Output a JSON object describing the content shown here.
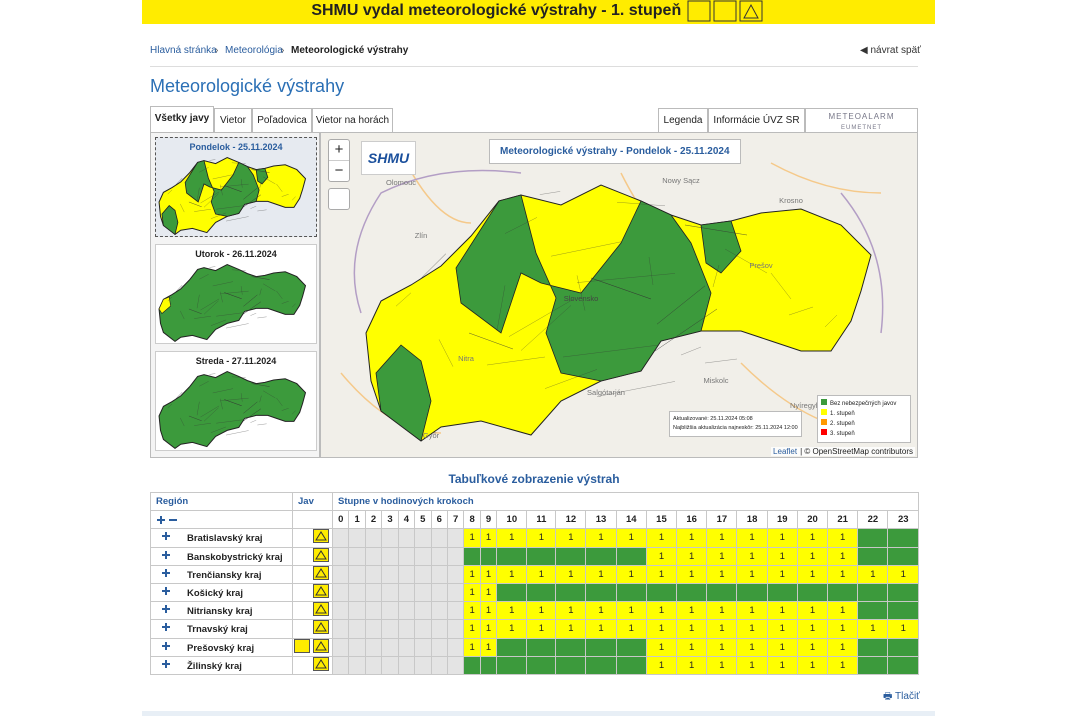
{
  "banner": {
    "text": "SHMU vydal meteorologické výstrahy - 1. stupeň"
  },
  "breadcrumb": [
    "Hlavná stránka",
    "Meteorológia",
    "Meteorologické výstrahy"
  ],
  "back": "návrat späť",
  "title": "Meteorologické výstrahy",
  "tabs": [
    "Všetky javy",
    "Vietor",
    "Poľadovica",
    "Vietor na horách"
  ],
  "right_tabs": [
    "Legenda",
    "Informácie ÚVZ SR"
  ],
  "meteoalarm": {
    "name": "METEOALARM",
    "sub": "EUMETNET"
  },
  "days": [
    "Pondelok - 25.11.2024",
    "Utorok - 26.11.2024",
    "Streda - 27.11.2024"
  ],
  "map": {
    "title": "Meteorologické výstrahy - Pondelok - 25.11.2024",
    "logo": "SHMU",
    "zoom_in": "+",
    "zoom_out": "−",
    "places": [
      "Olomouc",
      "Zlín",
      "Nowy Sącz",
      "Krosno",
      "Prešov",
      "Slovensko",
      "Nitra",
      "Miskolc",
      "Salgótarján",
      "Nyíregyháza",
      "Győr"
    ],
    "updated": "Aktualizované: 25.11.2024 05:08",
    "next": "Najbližšia aktualizácia najneskôr: 25.11.2024 12:00",
    "legend": [
      {
        "label": "Bez nebezpečných javov",
        "color": "#3c9a3c"
      },
      {
        "label": "1. stupeň",
        "color": "#ffff00"
      },
      {
        "label": "2. stupeň",
        "color": "#ff9900"
      },
      {
        "label": "3. stupeň",
        "color": "#ff0000"
      }
    ],
    "attribution": [
      "Leaflet",
      "| © OpenStreetMap contributors"
    ]
  },
  "table": {
    "title": "Tabuľkové zobrazenie výstrah",
    "headers": [
      "Región",
      "Jav",
      "Stupne v hodinových krokoch"
    ],
    "hours": [
      0,
      1,
      2,
      3,
      4,
      5,
      6,
      7,
      8,
      9,
      10,
      11,
      12,
      13,
      14,
      15,
      16,
      17,
      18,
      19,
      20,
      21,
      22,
      23
    ],
    "rows": [
      {
        "region": "Bratislavský kraj",
        "cells": [
          null,
          null,
          null,
          null,
          null,
          null,
          null,
          null,
          1,
          1,
          1,
          1,
          1,
          1,
          1,
          1,
          1,
          1,
          1,
          1,
          1,
          1,
          0,
          0
        ]
      },
      {
        "region": "Banskobystrický kraj",
        "cells": [
          null,
          null,
          null,
          null,
          null,
          null,
          null,
          null,
          0,
          0,
          0,
          0,
          0,
          0,
          0,
          1,
          1,
          1,
          1,
          1,
          1,
          1,
          0,
          0
        ]
      },
      {
        "region": "Trenčiansky kraj",
        "cells": [
          null,
          null,
          null,
          null,
          null,
          null,
          null,
          null,
          1,
          1,
          1,
          1,
          1,
          1,
          1,
          1,
          1,
          1,
          1,
          1,
          1,
          1,
          1,
          1
        ]
      },
      {
        "region": "Košický kraj",
        "cells": [
          null,
          null,
          null,
          null,
          null,
          null,
          null,
          null,
          1,
          1,
          0,
          0,
          0,
          0,
          0,
          0,
          0,
          0,
          0,
          0,
          0,
          0,
          0,
          0
        ]
      },
      {
        "region": "Nitriansky kraj",
        "cells": [
          null,
          null,
          null,
          null,
          null,
          null,
          null,
          null,
          1,
          1,
          1,
          1,
          1,
          1,
          1,
          1,
          1,
          1,
          1,
          1,
          1,
          1,
          0,
          0
        ]
      },
      {
        "region": "Trnavský kraj",
        "cells": [
          null,
          null,
          null,
          null,
          null,
          null,
          null,
          null,
          1,
          1,
          1,
          1,
          1,
          1,
          1,
          1,
          1,
          1,
          1,
          1,
          1,
          1,
          1,
          1
        ]
      },
      {
        "region": "Prešovský kraj",
        "cells": [
          null,
          null,
          null,
          null,
          null,
          null,
          null,
          null,
          1,
          1,
          0,
          0,
          0,
          0,
          0,
          1,
          1,
          1,
          1,
          1,
          1,
          1,
          0,
          0
        ]
      },
      {
        "region": "Žilinský kraj",
        "cells": [
          null,
          null,
          null,
          null,
          null,
          null,
          null,
          null,
          0,
          0,
          0,
          0,
          0,
          0,
          0,
          1,
          1,
          1,
          1,
          1,
          1,
          1,
          0,
          0
        ]
      }
    ],
    "print": "Tlačiť"
  }
}
